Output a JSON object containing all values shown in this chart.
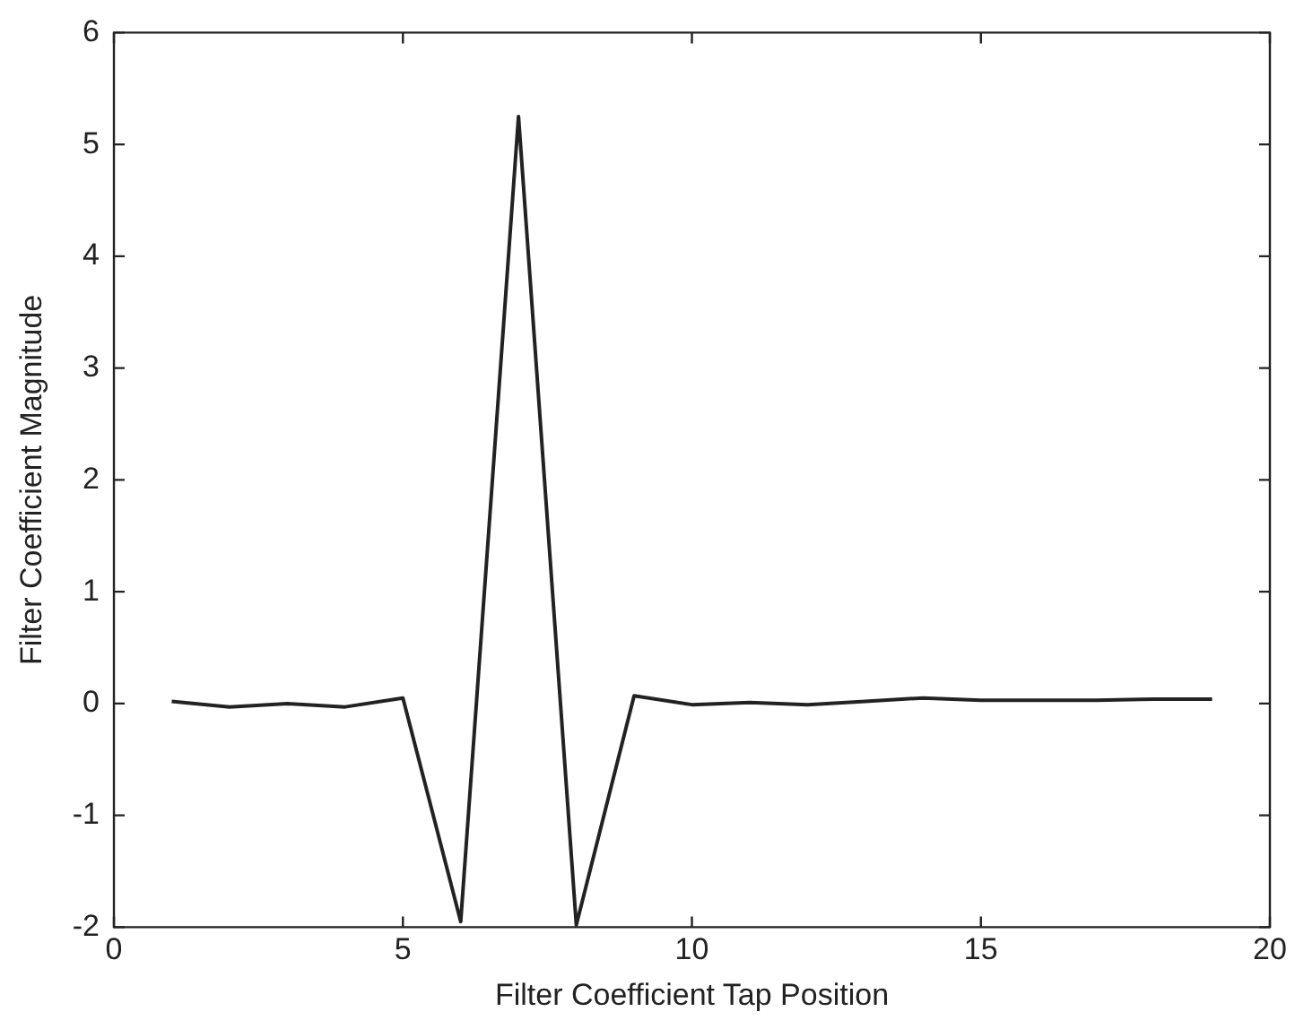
{
  "chart_data": {
    "type": "line",
    "xlabel": "Filter Coefficient Tap Position",
    "ylabel": "Filter Coefficient Magnitude",
    "x": [
      1,
      2,
      3,
      4,
      5,
      6,
      7,
      8,
      9,
      10,
      11,
      12,
      13,
      14,
      15,
      16,
      17,
      18,
      19
    ],
    "series": [
      {
        "color": "#222222",
        "values": [
          0.02,
          -0.03,
          0,
          -0.03,
          0.05,
          -1.95,
          5.25,
          -1.98,
          0.07,
          -0.01,
          0.01,
          -0.01,
          0.02,
          0.05,
          0.03,
          0.03,
          0.03,
          0.04,
          0.04
        ]
      }
    ],
    "xlim": [
      0,
      20
    ],
    "xticks": [
      0,
      5,
      10,
      15,
      20
    ],
    "ylim": [
      -2,
      6
    ],
    "yticks": [
      -2,
      -1,
      0,
      1,
      2,
      3,
      4,
      5,
      6
    ],
    "grid": false,
    "legend": false,
    "marker": "none",
    "line_style": "solid"
  }
}
